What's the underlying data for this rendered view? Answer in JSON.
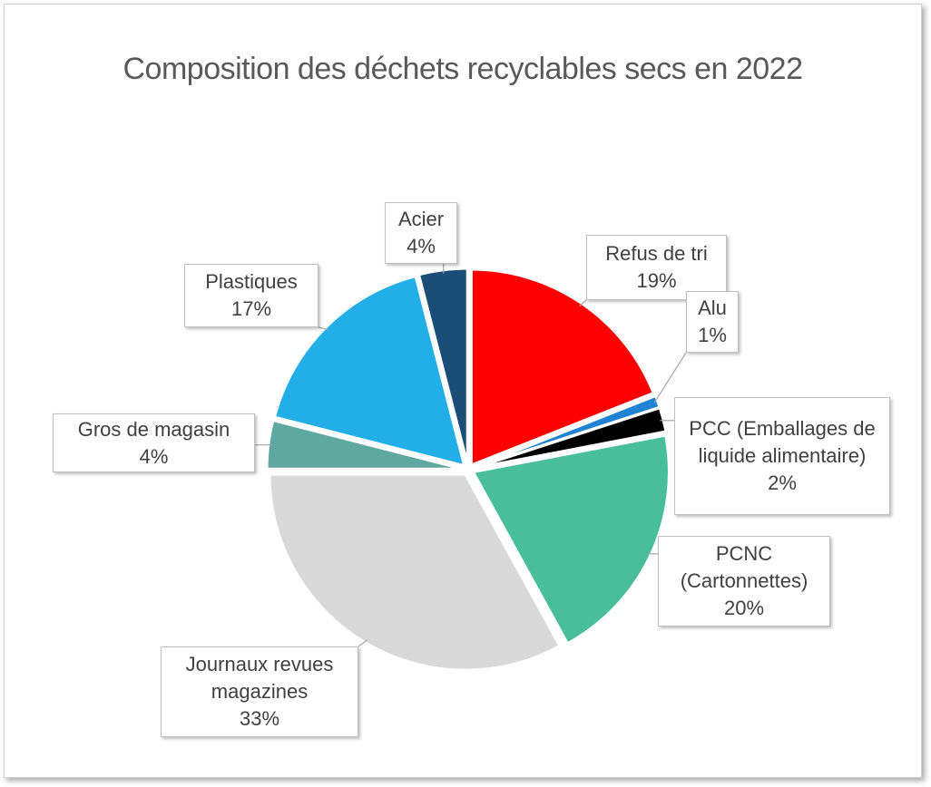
{
  "chart_data": {
    "type": "pie",
    "title": "Composition des déchets recyclables secs en 2022",
    "categories": [
      "Refus de tri",
      "Alu",
      "PCC (Emballages de liquide alimentaire)",
      "PCNC (Cartonnettes)",
      "Journaux revues magazines",
      "Gros de magasin",
      "Plastiques",
      "Acier"
    ],
    "values": [
      19,
      1,
      2,
      20,
      33,
      4,
      17,
      4
    ],
    "value_labels": [
      "19%",
      "1%",
      "2%",
      "20%",
      "33%",
      "4%",
      "17%",
      "4%"
    ],
    "colors": [
      "#ff0000",
      "#1f82d2",
      "#000000",
      "#48bf9a",
      "#d9d9d9",
      "#5fa8a0",
      "#22aee6",
      "#1a4e79"
    ]
  }
}
